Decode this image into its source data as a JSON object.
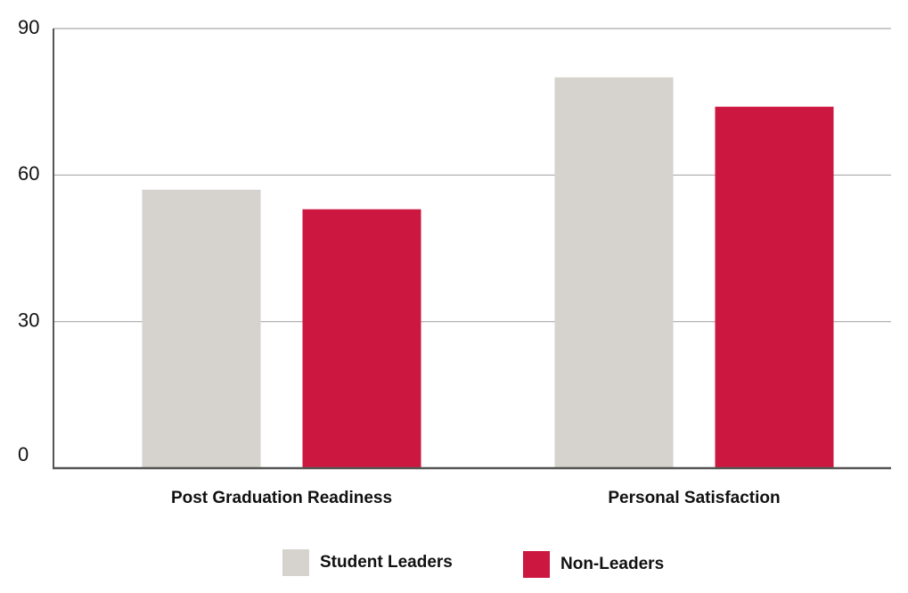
{
  "chart_data": {
    "type": "bar",
    "categories": [
      "Post Graduation Readiness",
      "Personal Satisfaction"
    ],
    "series": [
      {
        "name": "Student Leaders",
        "color": "#d6d2cd",
        "values": [
          57,
          80
        ]
      },
      {
        "name": "Non-Leaders",
        "color": "#cc1840",
        "values": [
          53,
          74
        ]
      }
    ],
    "ylim": [
      0,
      90
    ],
    "yticks": [
      0,
      30,
      60,
      90
    ],
    "grid": true,
    "legend": "bottom"
  }
}
